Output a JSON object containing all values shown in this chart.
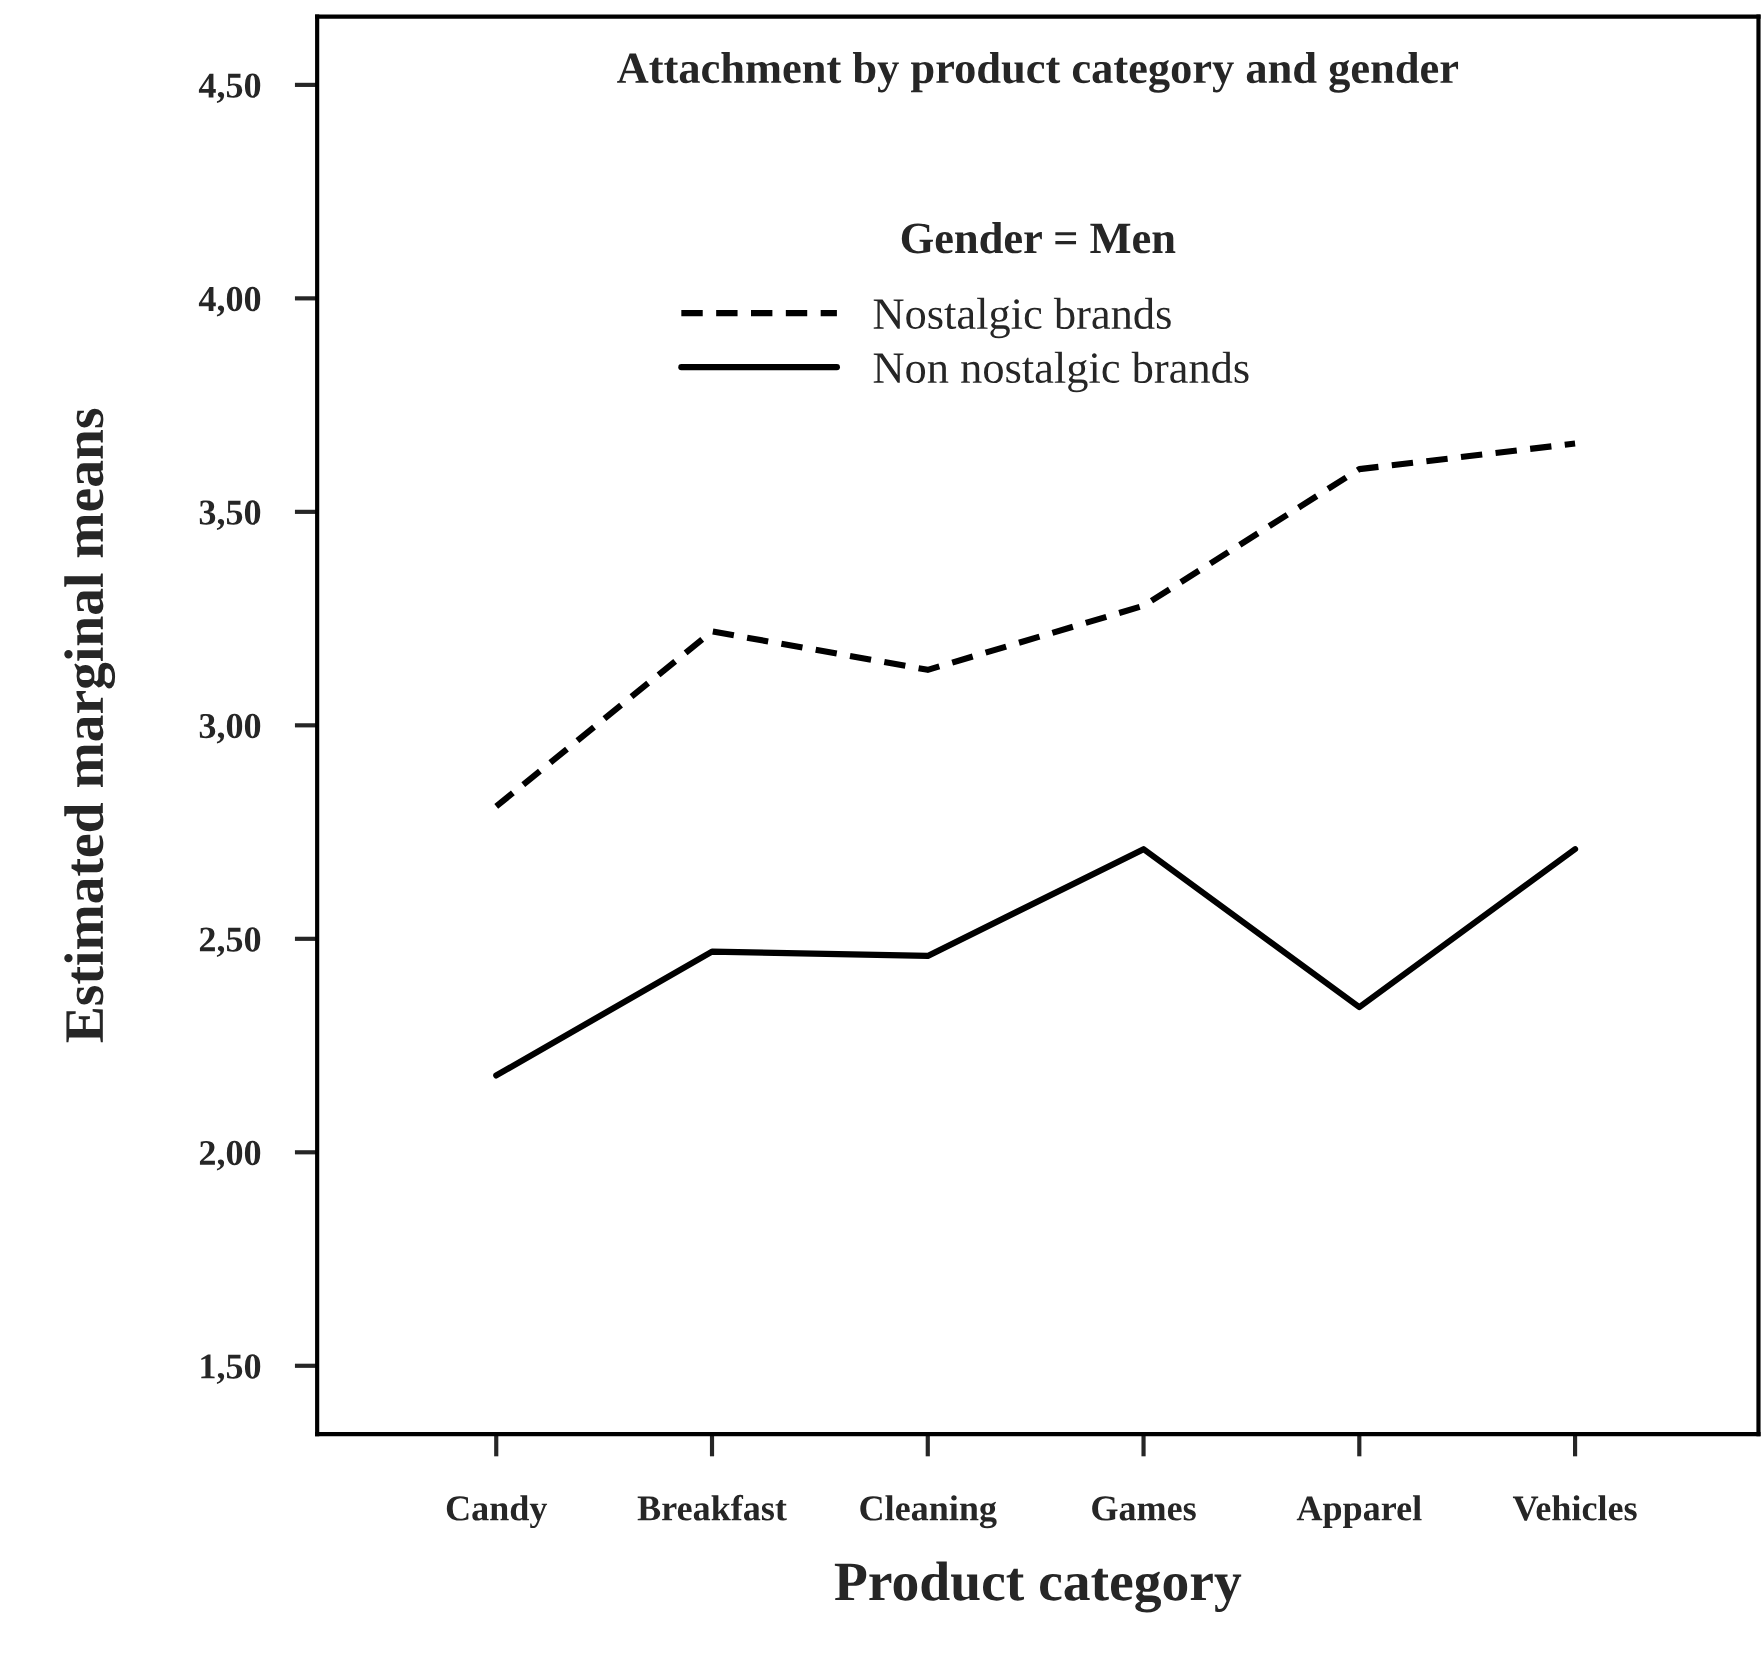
{
  "chart_data": {
    "type": "line",
    "title": "Attachment by product category and gender",
    "subtitle": "Gender = Men",
    "xlabel": "Product category",
    "ylabel": "Estimated marginal means",
    "categories": [
      "Candy",
      "Breakfast",
      "Cleaning",
      "Games",
      "Apparel",
      "Vehicles"
    ],
    "series": [
      {
        "name": "Nostalgic brands",
        "color": "#000000",
        "line_style": "dashed",
        "values": [
          2.81,
          3.22,
          3.13,
          3.28,
          3.6,
          3.66
        ]
      },
      {
        "name": "Non nostalgic brands",
        "color": "#000000",
        "line_style": "solid",
        "values": [
          2.18,
          2.47,
          2.46,
          2.71,
          2.34,
          2.71
        ]
      }
    ],
    "ylim": [
      1.34,
      4.66
    ],
    "yticks": [
      {
        "value": 1.5,
        "label": "1,50"
      },
      {
        "value": 2.0,
        "label": "2,00"
      },
      {
        "value": 2.5,
        "label": "2,50"
      },
      {
        "value": 3.0,
        "label": "3,00"
      },
      {
        "value": 3.5,
        "label": "3,50"
      },
      {
        "value": 4.0,
        "label": "4,00"
      },
      {
        "value": 4.5,
        "label": "4,50"
      }
    ],
    "grid": false,
    "legend": "top",
    "marker": "none"
  }
}
